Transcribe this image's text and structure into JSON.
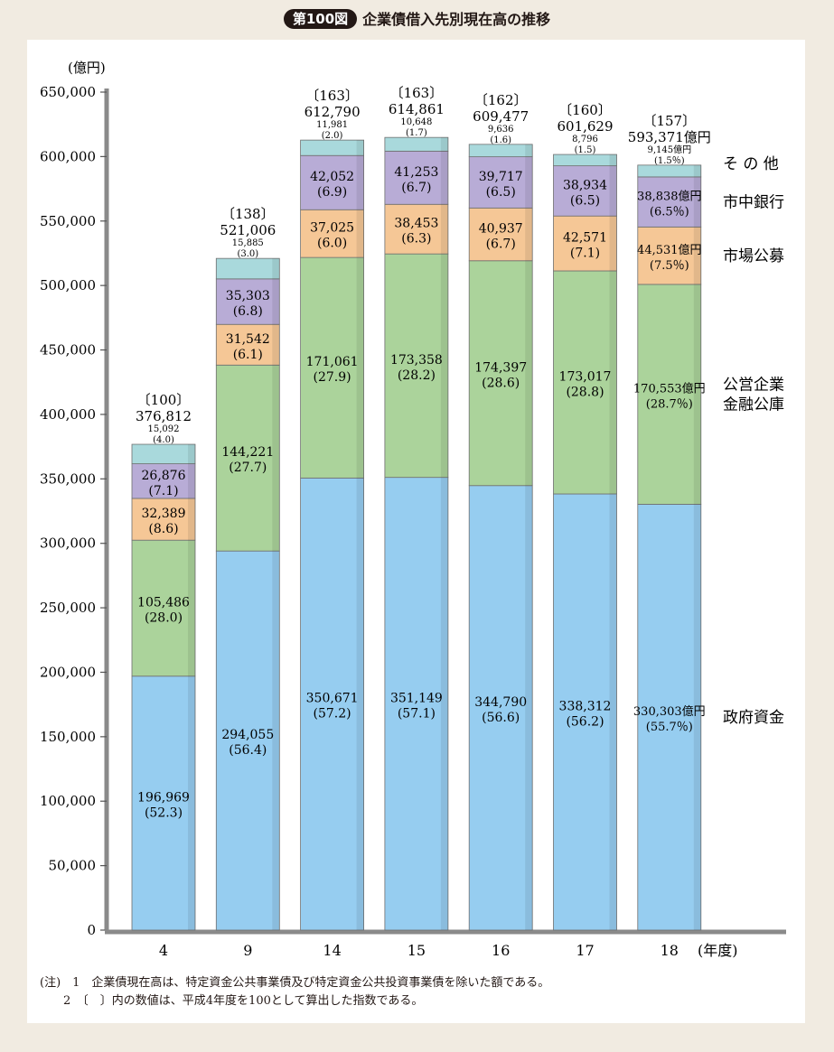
{
  "header": {
    "figure_number": "第100図",
    "title": "企業債借入先別現在高の推移"
  },
  "notes": {
    "note1": "(注)　1　企業債現在高は、特定資金公共事業債及び特定資金公共投資事業債を除いた額である。",
    "note2": "2　〔　〕内の数値は、平成4年度を100として算出した指数である。"
  },
  "chart_data": {
    "type": "bar",
    "stacked": true,
    "unit_label": "(億円)",
    "x_unit_label": "(年度)",
    "ylim": [
      0,
      650000
    ],
    "y_ticks": [
      "0",
      "50,000",
      "100,000",
      "150,000",
      "200,000",
      "250,000",
      "300,000",
      "350,000",
      "400,000",
      "450,000",
      "500,000",
      "550,000",
      "600,000",
      "650,000"
    ],
    "grid": false,
    "categories": [
      "4",
      "9",
      "14",
      "15",
      "16",
      "17",
      "18"
    ],
    "totals": [
      376812,
      521006,
      612790,
      614861,
      609477,
      601629,
      593371
    ],
    "total_labels": [
      "376,812",
      "521,006",
      "612,790",
      "614,861",
      "609,477",
      "601,629",
      "593,371億円"
    ],
    "index_labels": [
      "〔100〕",
      "〔138〕",
      "〔163〕",
      "〔163〕",
      "〔162〕",
      "〔160〕",
      "〔157〕"
    ],
    "series": [
      {
        "name": "政府資金",
        "color": "#96cdf0",
        "values": [
          196969,
          294055,
          350671,
          351149,
          344790,
          338312,
          330303
        ],
        "value_labels": [
          "196,969",
          "294,055",
          "350,671",
          "351,149",
          "344,790",
          "338,312",
          "330,303億円"
        ],
        "pct_labels": [
          "(52.3)",
          "(56.4)",
          "(57.2)",
          "(57.1)",
          "(56.6)",
          "(56.2)",
          "(55.7％)"
        ]
      },
      {
        "name": "公営企業金融公庫",
        "name_lines": [
          "公営企業",
          "金融公庫"
        ],
        "color": "#abd39b",
        "values": [
          105486,
          144221,
          171061,
          173358,
          174397,
          173017,
          170553
        ],
        "value_labels": [
          "105,486",
          "144,221",
          "171,061",
          "173,358",
          "174,397",
          "173,017",
          "170,553億円"
        ],
        "pct_labels": [
          "(28.0)",
          "(27.7)",
          "(27.9)",
          "(28.2)",
          "(28.6)",
          "(28.8)",
          "(28.7％)"
        ]
      },
      {
        "name": "市場公募",
        "color": "#f5c796",
        "values": [
          32389,
          31542,
          37025,
          38453,
          40937,
          42571,
          44531
        ],
        "value_labels": [
          "32,389",
          "31,542",
          "37,025",
          "38,453",
          "40,937",
          "42,571",
          "44,531億円"
        ],
        "pct_labels": [
          "(8.6)",
          "(6.1)",
          "(6.0)",
          "(6.3)",
          "(6.7)",
          "(7.1)",
          "(7.5％)"
        ]
      },
      {
        "name": "市中銀行",
        "color": "#b8acd6",
        "values": [
          26876,
          35303,
          42052,
          41253,
          39717,
          38934,
          38838
        ],
        "value_labels": [
          "26,876",
          "35,303",
          "42,052",
          "41,253",
          "39,717",
          "38,934",
          "38,838億円"
        ],
        "pct_labels": [
          "(7.1)",
          "(6.8)",
          "(6.9)",
          "(6.7)",
          "(6.5)",
          "(6.5)",
          "(6.5％)"
        ]
      },
      {
        "name": "その他",
        "name_display": "そ の 他",
        "color": "#a9d9dc",
        "values": [
          15092,
          15885,
          11981,
          10648,
          9636,
          8796,
          9145
        ],
        "value_labels": [
          "15,092",
          "15,885",
          "11,981",
          "10,648",
          "9,636",
          "8,796",
          "9,145億円"
        ],
        "pct_labels": [
          "(4.0)",
          "(3.0)",
          "(2.0)",
          "(1.7)",
          "(1.6)",
          "(1.5)",
          "(1.5％)"
        ]
      }
    ]
  }
}
